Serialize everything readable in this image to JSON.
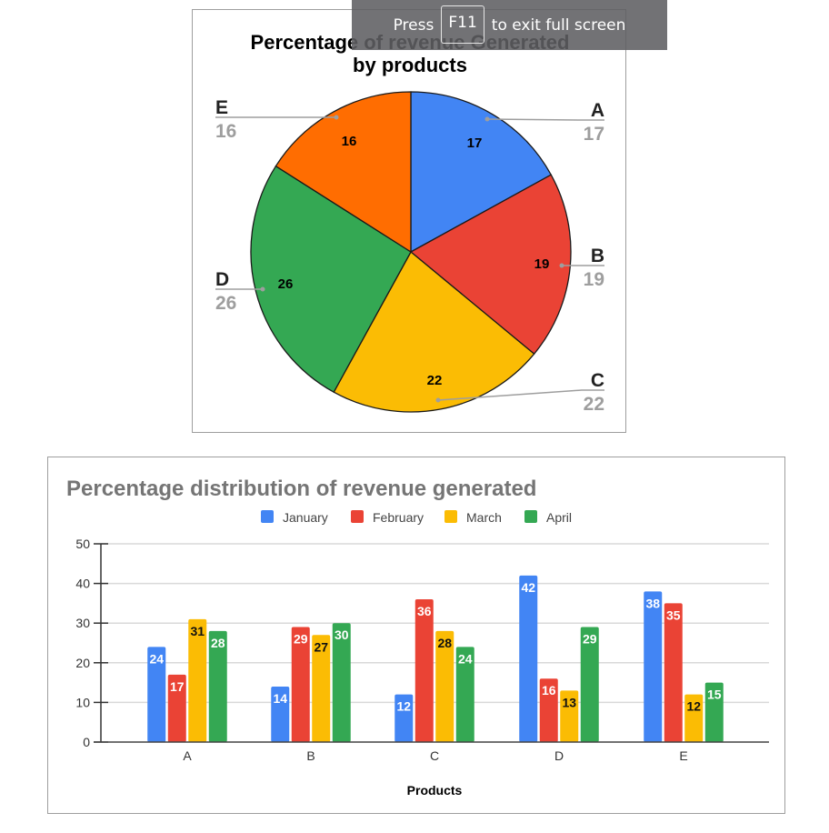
{
  "fullscreen_banner": {
    "prefix": "Press",
    "key": "F11",
    "suffix": "to exit full screen"
  },
  "chart_data": [
    {
      "type": "pie",
      "title": "Percentage of revenue Generated by products",
      "title_lines": [
        "Percentage of revenue Generated",
        "by products"
      ],
      "categories": [
        "A",
        "B",
        "C",
        "D",
        "E"
      ],
      "values": [
        17,
        19,
        22,
        26,
        16
      ],
      "colors": [
        "#4285f4",
        "#ea4335",
        "#fbbc04",
        "#34a853",
        "#ff6d01"
      ],
      "slice_labels": [
        "17",
        "19",
        "22",
        "26",
        "16"
      ],
      "legend": "labeled leader lines"
    },
    {
      "type": "bar",
      "title": "Percentage distribution of revenue generated",
      "xlabel": "Products",
      "ylabel": "",
      "ylim": [
        0,
        50
      ],
      "yticks": [
        0,
        10,
        20,
        30,
        40,
        50
      ],
      "grid": true,
      "legend_position": "top",
      "categories": [
        "A",
        "B",
        "C",
        "D",
        "E"
      ],
      "series": [
        {
          "name": "January",
          "color": "#4285f4",
          "values": [
            24,
            14,
            12,
            42,
            38
          ]
        },
        {
          "name": "February",
          "color": "#ea4335",
          "values": [
            17,
            29,
            36,
            16,
            35
          ]
        },
        {
          "name": "March",
          "color": "#fbbc04",
          "values": [
            31,
            27,
            28,
            13,
            12
          ]
        },
        {
          "name": "April",
          "color": "#34a853",
          "values": [
            28,
            30,
            24,
            29,
            15
          ]
        }
      ]
    }
  ]
}
